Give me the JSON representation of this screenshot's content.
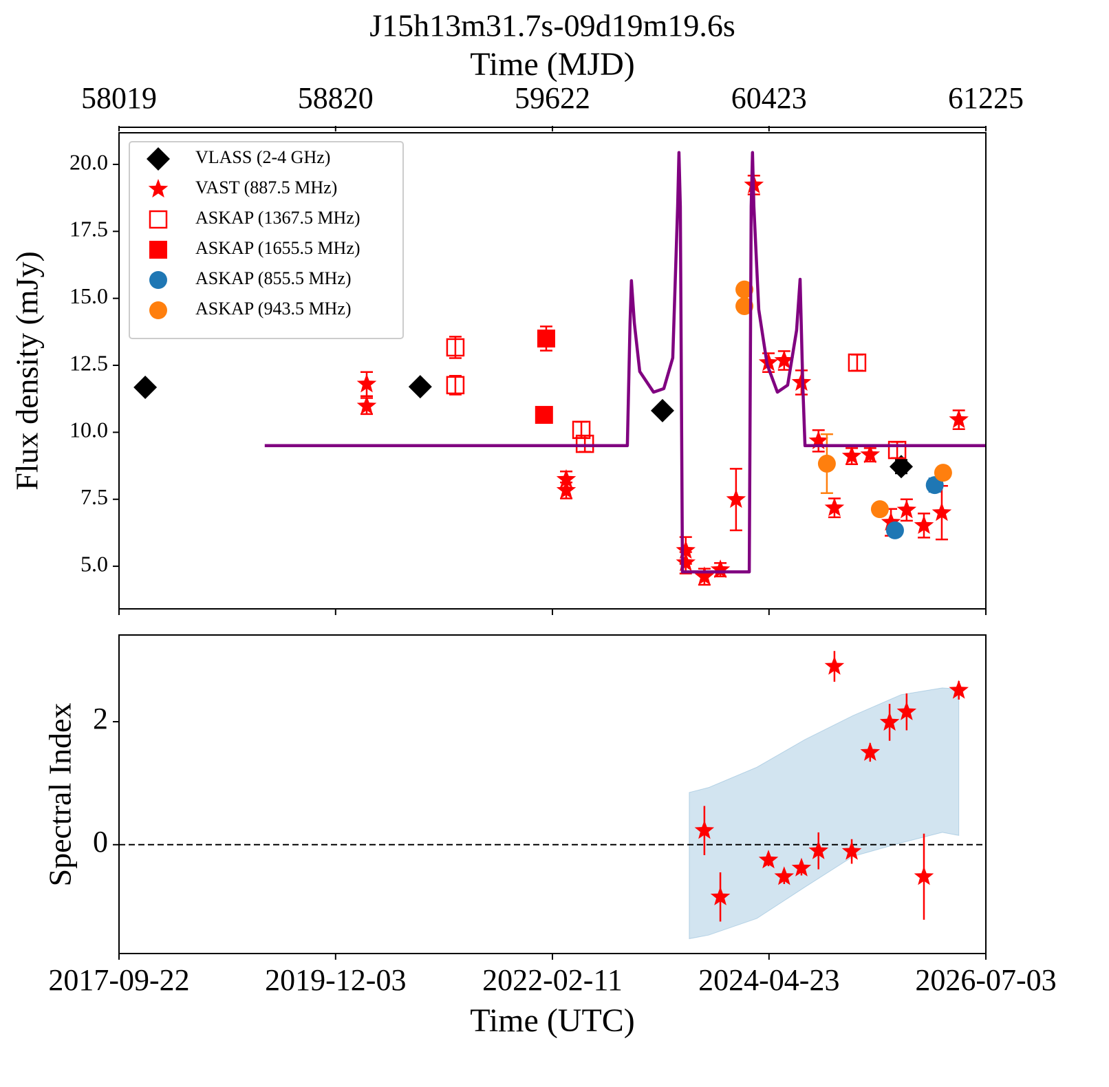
{
  "chart_data": [
    {
      "type": "scatter",
      "title": "J15h13m31.7s-09d19m19.6s",
      "xlabel": "Time (MJD)",
      "ylabel": "Flux density (mJy)",
      "xlim": [
        58019,
        61225
      ],
      "xticks": [
        58019,
        58820,
        59622,
        60423,
        61225
      ],
      "ylim": [
        3.41,
        21.18
      ],
      "yticks": [
        {
          "value": 5,
          "label": "5.0"
        },
        7.5,
        {
          "value": 10,
          "label": "10.0"
        },
        12.5,
        {
          "value": 15,
          "label": "15.0"
        },
        17.5,
        {
          "value": 20,
          "label": "20.0"
        }
      ],
      "legend": "upper left",
      "series": [
        {
          "name": "VLASS (2-4 GHz)",
          "color": "#000000",
          "marker": "diamond",
          "x": [
            58116,
            59133,
            60029,
            60912
          ],
          "values": [
            11.68,
            11.7,
            10.81,
            8.72
          ],
          "errors": [
            0.15,
            0.15,
            0.15,
            0.25
          ]
        },
        {
          "name": "VAST (887.5 MHz)",
          "color": "#ff0000",
          "marker": "star",
          "x": [
            58935,
            58935,
            59673,
            59673,
            60115,
            60115,
            60184,
            60243,
            60301,
            60367,
            60421,
            60479,
            60543,
            60606,
            60665,
            60729,
            60797,
            60874,
            60932,
            60996,
            61062,
            61125
          ],
          "values": [
            11.8,
            10.98,
            8.24,
            7.83,
            5.59,
            5.13,
            4.61,
            4.87,
            7.49,
            19.23,
            12.6,
            12.68,
            11.86,
            9.68,
            7.18,
            9.11,
            9.16,
            6.64,
            7.1,
            6.52,
            7.0,
            10.47
          ],
          "errors": [
            0.45,
            0.3,
            0.3,
            0.3,
            0.5,
            0.4,
            0.3,
            0.25,
            1.15,
            0.35,
            0.35,
            0.35,
            0.45,
            0.4,
            0.35,
            0.3,
            0.25,
            0.5,
            0.4,
            0.45,
            1.0,
            0.35
          ]
        },
        {
          "name": "ASKAP (1367.5 MHz)",
          "color": "#ff0000",
          "marker": "open-square",
          "x": [
            59263,
            59263,
            59729,
            59742,
            60749,
            60897
          ],
          "values": [
            13.17,
            11.76,
            10.09,
            9.57,
            12.6,
            9.34
          ],
          "errors": [
            0.4,
            0.35,
            0.3,
            0.3,
            0.3,
            0.3
          ]
        },
        {
          "name": "ASKAP (1655.5 MHz)",
          "color": "#ff0000",
          "marker": "square",
          "x": [
            59599,
            59591
          ],
          "values": [
            13.5,
            10.65
          ],
          "errors": [
            0.45,
            0.2
          ]
        },
        {
          "name": "ASKAP (855.5 MHz)",
          "color": "#1f77b4",
          "marker": "circle",
          "x": [
            60889,
            61036
          ],
          "values": [
            6.34,
            8.03
          ],
          "errors": [
            0.2,
            0.25
          ]
        },
        {
          "name": "ASKAP (943.5 MHz)",
          "color": "#ff7f0e",
          "marker": "circle",
          "x": [
            60332,
            60332,
            60637,
            60833,
            61067
          ],
          "values": [
            15.33,
            14.71,
            8.83,
            7.13,
            8.49
          ],
          "errors": [
            0.2,
            0.2,
            1.1,
            0.2,
            0.2
          ]
        },
        {
          "type": "line",
          "color": "#800080",
          "x": [
            58558,
            59899,
            59909,
            59914,
            59925,
            59945,
            59996,
            60034,
            60067,
            60085,
            60090,
            60095,
            60103,
            60350,
            60357,
            60362,
            60367,
            60385,
            60416,
            60454,
            60492,
            60525,
            60538,
            60548,
            60556,
            61225
          ],
          "values": [
            9.5,
            9.5,
            14.07,
            15.66,
            14.07,
            12.27,
            11.5,
            11.63,
            12.78,
            18.43,
            20.44,
            18.43,
            4.79,
            4.79,
            18.43,
            20.44,
            18.43,
            14.58,
            12.53,
            11.5,
            11.76,
            13.81,
            15.71,
            11.76,
            9.5,
            9.5
          ]
        }
      ]
    },
    {
      "type": "scatter",
      "xlabel": "Time (UTC)",
      "ylabel": "Spectral Index",
      "xlim": [
        58019,
        61225
      ],
      "xticks": [
        {
          "value": 58019,
          "label": "2017-09-22"
        },
        {
          "value": 58820,
          "label": "2019-12-03"
        },
        {
          "value": 59622,
          "label": "2022-02-11"
        },
        {
          "value": 60423,
          "label": "2024-04-23"
        },
        {
          "value": 61225,
          "label": "2026-07-03"
        }
      ],
      "ylim": [
        -1.77,
        3.41
      ],
      "yticks": [
        0,
        2
      ],
      "hline": 0,
      "band": {
        "color": "#1f77b4",
        "x": [
          60128,
          60200,
          60378,
          60556,
          60734,
          60912,
          61064,
          61125
        ],
        "upper": [
          0.85,
          0.93,
          1.26,
          1.71,
          2.1,
          2.44,
          2.55,
          2.53
        ],
        "lower": [
          -1.53,
          -1.47,
          -1.2,
          -0.69,
          -0.19,
          0.03,
          0.2,
          0.15
        ]
      },
      "series": [
        {
          "color": "#ff0000",
          "marker": "star",
          "x": [
            60184,
            60243,
            60421,
            60479,
            60543,
            60606,
            60665,
            60729,
            60797,
            60869,
            60932,
            60996,
            61125
          ],
          "values": [
            0.23,
            -0.85,
            -0.25,
            -0.52,
            -0.38,
            -0.1,
            2.9,
            -0.11,
            1.5,
            1.99,
            2.16,
            -0.52,
            2.51
          ],
          "errors": [
            0.4,
            0.4,
            0.1,
            0.12,
            0.12,
            0.3,
            0.25,
            0.2,
            0.15,
            0.3,
            0.3,
            0.7,
            0.15
          ]
        }
      ]
    }
  ]
}
